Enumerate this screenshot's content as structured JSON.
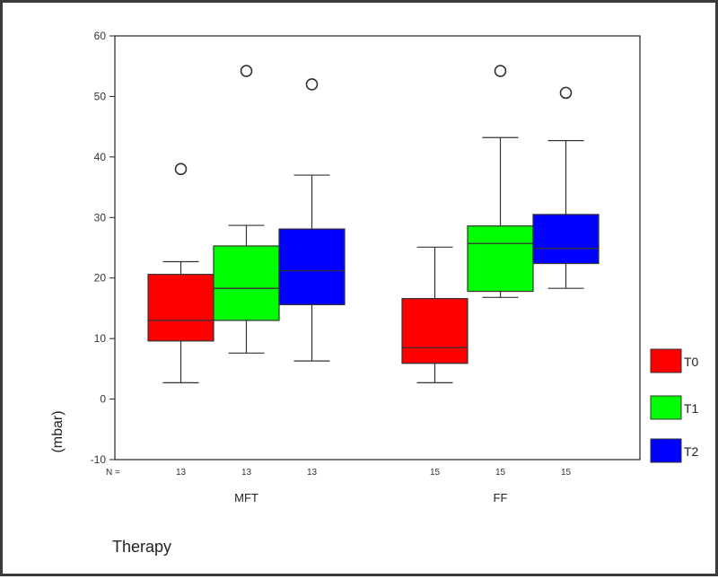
{
  "chart_data": {
    "type": "box",
    "ylabel": "(mbar)",
    "xlabel": "Therapy",
    "ylim": [
      -10,
      60
    ],
    "yticks": [
      -10,
      0,
      10,
      20,
      30,
      40,
      50,
      60
    ],
    "n_label": "N =",
    "legend_position": "right",
    "series": [
      {
        "name": "T0",
        "color": "#ff0000"
      },
      {
        "name": "T1",
        "color": "#00ff00"
      },
      {
        "name": "T2",
        "color": "#0000ff"
      }
    ],
    "groups": [
      {
        "label": "MFT",
        "boxes": [
          {
            "series": "T0",
            "n": "13",
            "whisker_low": 2.7,
            "q1": 9.6,
            "median": 13.0,
            "q3": 20.6,
            "whisker_high": 22.7,
            "outliers": [
              38.0
            ]
          },
          {
            "series": "T1",
            "n": "13",
            "whisker_low": 7.6,
            "q1": 13.0,
            "median": 18.3,
            "q3": 25.3,
            "whisker_high": 28.7,
            "outliers": [
              54.2
            ]
          },
          {
            "series": "T2",
            "n": "13",
            "whisker_low": 6.3,
            "q1": 15.6,
            "median": 21.2,
            "q3": 28.1,
            "whisker_high": 37.0,
            "outliers": [
              52.0
            ]
          }
        ]
      },
      {
        "label": "FF",
        "boxes": [
          {
            "series": "T0",
            "n": "15",
            "whisker_low": 2.7,
            "q1": 5.9,
            "median": 8.5,
            "q3": 16.6,
            "whisker_high": 25.1,
            "outliers": []
          },
          {
            "series": "T1",
            "n": "15",
            "whisker_low": 16.8,
            "q1": 17.8,
            "median": 25.7,
            "q3": 28.6,
            "whisker_high": 43.2,
            "outliers": [
              54.2
            ]
          },
          {
            "series": "T2",
            "n": "15",
            "whisker_low": 18.3,
            "q1": 22.4,
            "median": 24.9,
            "q3": 30.5,
            "whisker_high": 42.7,
            "outliers": [
              50.6
            ]
          }
        ]
      }
    ]
  }
}
